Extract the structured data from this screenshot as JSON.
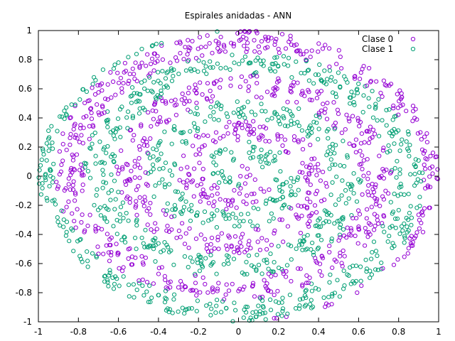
{
  "chart_data": {
    "type": "scatter",
    "title": "Espirales anidadas - ANN",
    "xlabel": "",
    "ylabel": "",
    "xlim": [
      -1,
      1
    ],
    "ylim": [
      -1,
      1
    ],
    "xticks": [
      "-1",
      "-0.8",
      "-0.6",
      "-0.4",
      "-0.2",
      "0",
      "0.2",
      "0.4",
      "0.6",
      "0.8",
      "1"
    ],
    "yticks": [
      "-1",
      "-0.8",
      "-0.6",
      "-0.4",
      "-0.2",
      "0",
      "0.2",
      "0.4",
      "0.6",
      "0.8",
      "1"
    ],
    "grid": false,
    "legend_position": "top-right",
    "marker": "open-circle",
    "points_per_class": 1000,
    "region": "unit disc",
    "series": [
      {
        "name": "Clase 0",
        "color": "#9400d3",
        "pattern": "nested-spiral-arm-a"
      },
      {
        "name": "Clase 1",
        "color": "#009e73",
        "pattern": "nested-spiral-arm-b"
      }
    ]
  }
}
